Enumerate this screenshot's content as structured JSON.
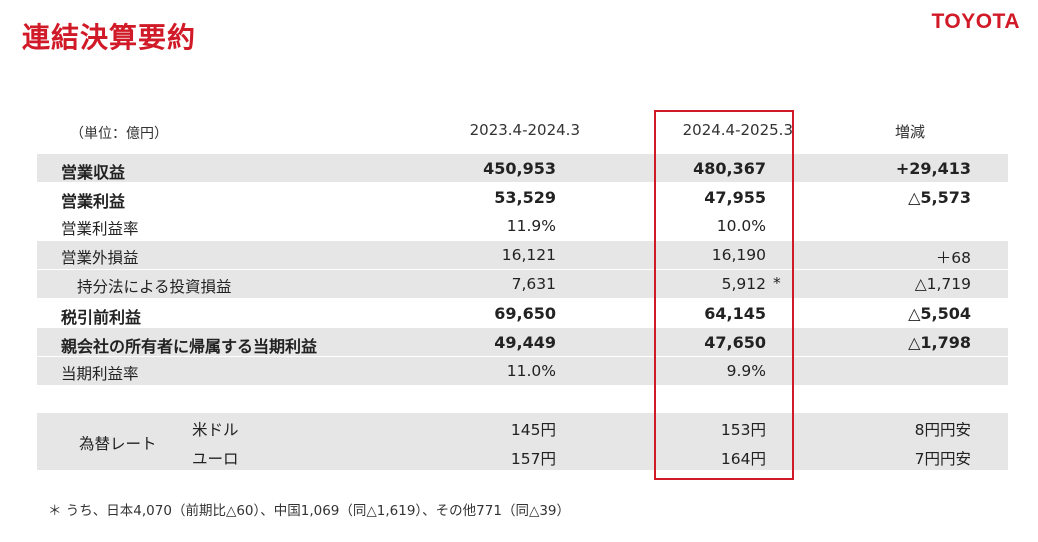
{
  "header": {
    "title": "連結決算要約",
    "logo": "TOYOTA"
  },
  "table": {
    "unit": "（単位：億円）",
    "columns": [
      "2023.4-2024.3",
      "2024.4-2025.3",
      "増減"
    ],
    "rows": [
      {
        "label": "営業収益",
        "v1": "450,953",
        "v2": "480,367",
        "note": "",
        "v3": "+29,413"
      },
      {
        "label": "営業利益",
        "v1": "53,529",
        "v2": "47,955",
        "note": "",
        "v3": "△5,573"
      },
      {
        "label": "営業利益率",
        "v1": "11.9%",
        "v2": "10.0%",
        "note": "",
        "v3": ""
      },
      {
        "label": "営業外損益",
        "v1": "16,121",
        "v2": "16,190",
        "note": "",
        "v3": "＋68"
      },
      {
        "label": "持分法による投資損益",
        "v1": "7,631",
        "v2": "5,912",
        "note": "*",
        "v3": "△1,719"
      },
      {
        "label": "税引前利益",
        "v1": "69,650",
        "v2": "64,145",
        "note": "",
        "v3": "△5,504"
      },
      {
        "label": "親会社の所有者に帰属する当期利益",
        "v1": "49,449",
        "v2": "47,650",
        "note": "",
        "v3": "△1,798"
      },
      {
        "label": "当期利益率",
        "v1": "11.0%",
        "v2": "9.9%",
        "note": "",
        "v3": ""
      }
    ],
    "fx": {
      "label": "為替レート",
      "rows": [
        {
          "label": "米ドル",
          "v1": "145円",
          "v2": "153円",
          "v3": "8円円安"
        },
        {
          "label": "ユーロ",
          "v1": "157円",
          "v2": "164円",
          "v3": "7円円安"
        }
      ]
    }
  },
  "footnote": "＊ うち、日本4,070（前期比△60）、中国1,069（同△1,619）、その他771（同△39）",
  "colors": {
    "accent": "#d11a27",
    "shade": "#e6e6e6"
  }
}
